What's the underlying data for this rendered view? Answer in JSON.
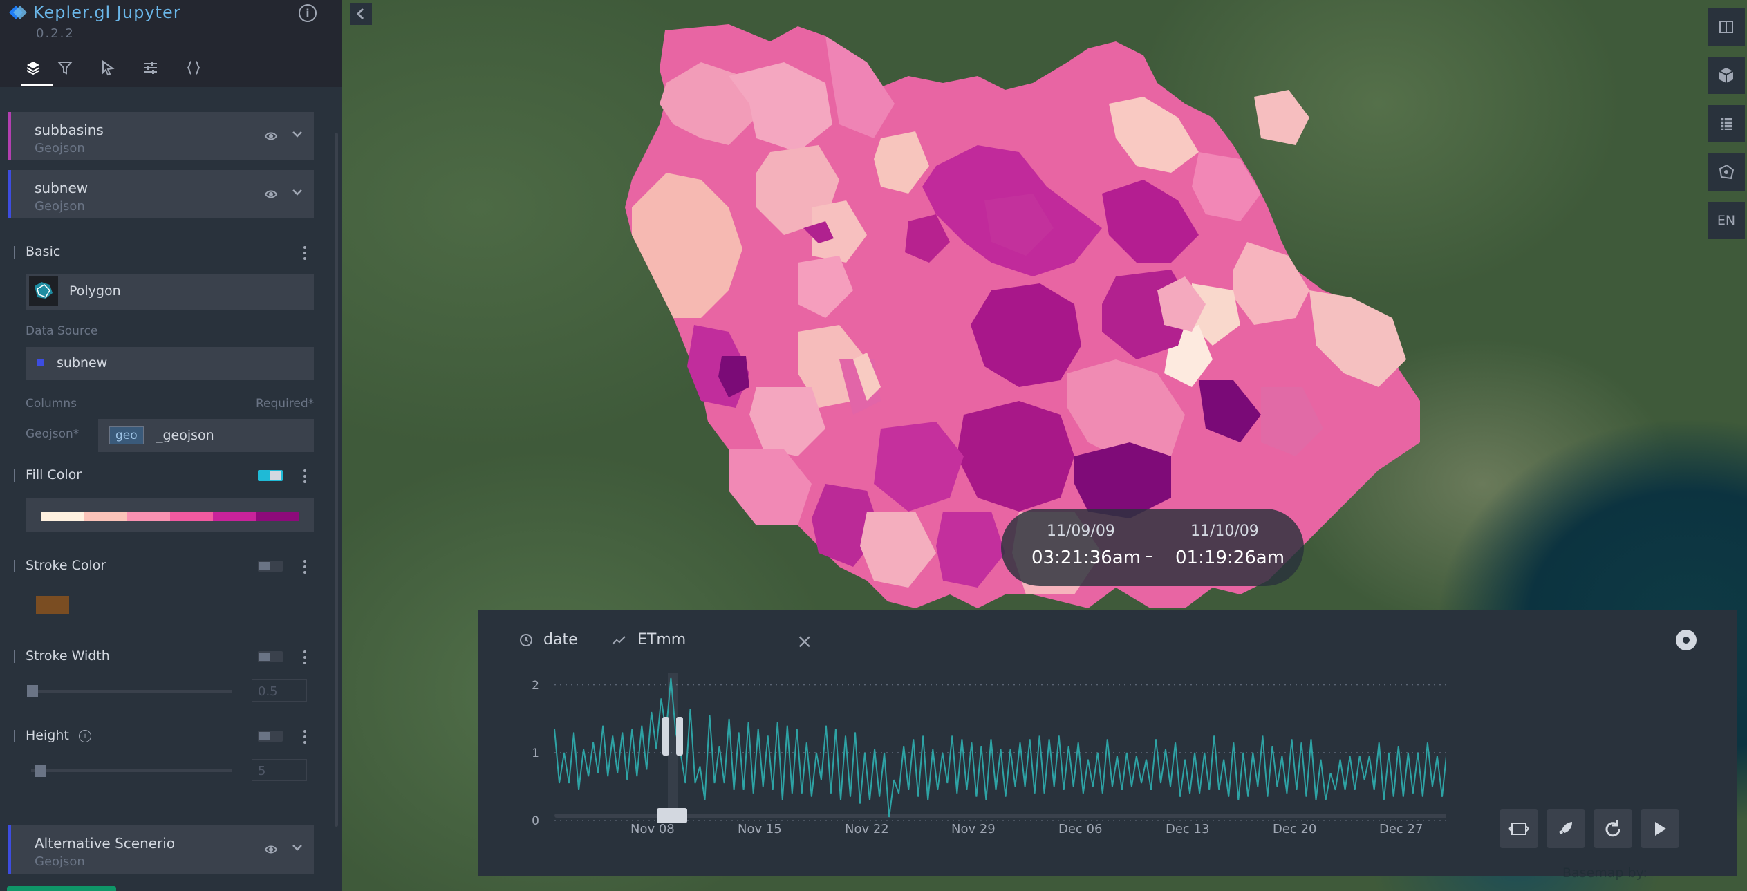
{
  "app": {
    "title": "Kepler.gl Jupyter",
    "version": "0.2.2"
  },
  "tabs": [
    {
      "name": "layers",
      "icon": "layers-icon",
      "active": true
    },
    {
      "name": "filters",
      "icon": "filter-icon",
      "active": false
    },
    {
      "name": "interactions",
      "icon": "cursor-icon",
      "active": false
    },
    {
      "name": "map-style",
      "icon": "sliders-icon",
      "active": false
    },
    {
      "name": "config",
      "icon": "braces-icon",
      "active": false
    }
  ],
  "layers": [
    {
      "name": "subbasins",
      "type": "Geojson",
      "color": "#b23fb0"
    },
    {
      "name": "subnew",
      "type": "Geojson",
      "color": "#3d4de0"
    },
    {
      "name": "Alternative Scenerio",
      "type": "Geojson",
      "color": "#3d4de0"
    }
  ],
  "config": {
    "basic_label": "Basic",
    "layer_type": "Polygon",
    "data_source_label": "Data Source",
    "data_source_value": "subnew",
    "data_source_color": "#3d4de0",
    "columns_label": "Columns",
    "required_label": "Required*",
    "geojson_label": "Geojson*",
    "geojson_type_badge": "geo",
    "geojson_value": "_geojson",
    "fill_color_label": "Fill Color",
    "fill_palette": [
      "#fff1e0",
      "#fbc3b9",
      "#f992b2",
      "#f15aa0",
      "#c9239a",
      "#8d0a7a"
    ],
    "stroke_color_label": "Stroke Color",
    "stroke_color": "#7a4d22",
    "stroke_width_label": "Stroke Width",
    "stroke_width_value": "0.5",
    "height_label": "Height",
    "height_value": "5"
  },
  "map_controls": [
    "split-map-icon",
    "3d-cube-icon",
    "legend-icon",
    "draw-polygon-icon"
  ],
  "map_locale": "EN",
  "time_range": {
    "start_date": "11/09/09",
    "start_time": "03:21:36am",
    "separator": "–",
    "end_date": "11/10/09",
    "end_time": "01:19:26am"
  },
  "time_widget": {
    "field_name": "date",
    "y_field": "ETmm",
    "playback_buttons": [
      "animation-window-icon",
      "speed-rocket-icon",
      "reset-icon",
      "play-icon"
    ]
  },
  "chart_data": {
    "type": "line",
    "x_ticks": [
      "Nov 08",
      "Nov 15",
      "Nov 22",
      "Nov 29",
      "Dec 06",
      "Dec 13",
      "Dec 20",
      "Dec 27"
    ],
    "y_ticks": [
      "0",
      "1",
      "2"
    ],
    "ylim": [
      0,
      2.1
    ],
    "grid": true,
    "series": [
      {
        "color": "#2ea3a5",
        "values": [
          1.35,
          0.55,
          1.0,
          0.55,
          1.3,
          0.45,
          1.05,
          0.65,
          1.15,
          0.7,
          1.4,
          0.65,
          1.25,
          0.7,
          1.3,
          0.6,
          1.35,
          0.65,
          1.4,
          0.75,
          1.6,
          1.05,
          1.8,
          1.3,
          2.1,
          1.3,
          1.0,
          0.55,
          1.65,
          0.55,
          0.8,
          0.3,
          1.55,
          0.55,
          1.1,
          0.55,
          1.5,
          0.45,
          1.3,
          0.45,
          1.45,
          0.4,
          1.35,
          0.5,
          1.25,
          0.45,
          1.45,
          0.3,
          1.4,
          0.4,
          1.35,
          0.4,
          1.15,
          0.35,
          1.0,
          0.6,
          1.4,
          0.4,
          1.35,
          0.3,
          1.25,
          0.35,
          1.3,
          0.25,
          1.0,
          0.3,
          1.05,
          0.35,
          1.0,
          0.05,
          0.6,
          0.4,
          1.1,
          0.45,
          1.2,
          0.35,
          1.25,
          0.3,
          1.05,
          0.45,
          1.0,
          0.55,
          1.25,
          0.4,
          1.2,
          0.45,
          1.15,
          0.35,
          1.1,
          0.3,
          1.2,
          0.45,
          1.05,
          0.35,
          1.05,
          0.5,
          1.15,
          0.5,
          1.2,
          0.4,
          1.25,
          0.4,
          1.2,
          0.5,
          1.25,
          0.45,
          1.1,
          0.5,
          1.15,
          0.4,
          0.9,
          0.5,
          1.0,
          0.4,
          1.2,
          0.5,
          0.95,
          0.45,
          1.0,
          0.5,
          0.95,
          0.55,
          0.9,
          0.45,
          1.2,
          0.55,
          1.05,
          0.5,
          1.15,
          0.35,
          0.9,
          0.4,
          1.0,
          0.4,
          1.0,
          0.45,
          1.25,
          0.45,
          0.9,
          0.35,
          1.15,
          0.3,
          1.0,
          0.35,
          1.0,
          0.5,
          1.25,
          0.35,
          1.1,
          0.5,
          0.95,
          0.4,
          1.2,
          0.45,
          1.15,
          0.35,
          1.2,
          0.3,
          0.9,
          0.3,
          0.7,
          0.45,
          0.9,
          0.45,
          0.95,
          0.45,
          0.95,
          0.6,
          0.95,
          0.45,
          1.15,
          0.3,
          1.0,
          0.35,
          1.1,
          0.35,
          1.0,
          0.4,
          1.0,
          0.35,
          1.15,
          0.5,
          0.95,
          0.35,
          1.05,
          0.35,
          0.85
        ]
      }
    ]
  },
  "basemap_credit": "Basemap by:"
}
